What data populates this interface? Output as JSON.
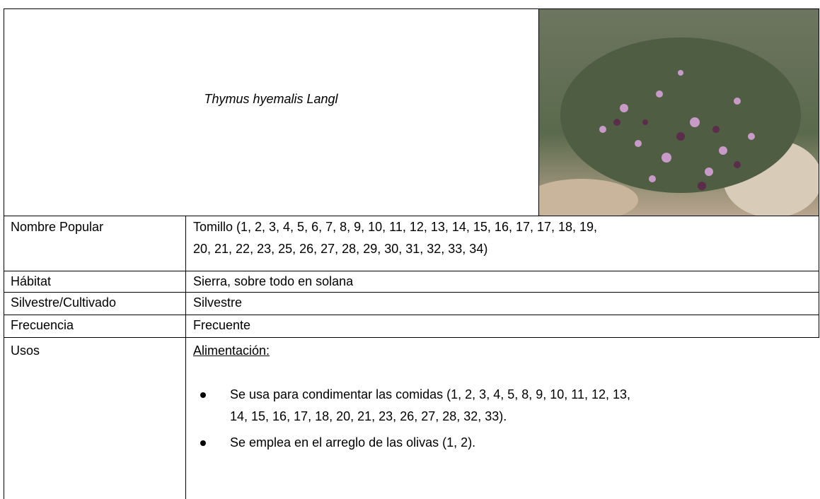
{
  "header": {
    "title": "Thymus hyemalis Langl"
  },
  "rows": [
    {
      "label": "Nombre Popular",
      "value": [
        "Tomillo (1, 2, 3, 4, 5, 6, 7, 8, 9, 10, 11, 12, 13, 14, 15, 16, 17, 17, 18, 19,",
        "20, 21, 22, 23, 25, 26, 27, 28, 29, 30, 31, 32, 33, 34)"
      ]
    },
    {
      "label": "Hábitat",
      "value": [
        "Sierra, sobre todo en solana"
      ]
    },
    {
      "label": "Silvestre/Cultivado",
      "value": [
        "Silvestre"
      ]
    },
    {
      "label": "Frecuencia",
      "value": [
        "Frecuente"
      ]
    }
  ],
  "usos": {
    "label": "Usos",
    "heading": "Alimentación:",
    "bullets": [
      [
        "Se usa para condimentar las comidas (1, 2, 3, 4, 5, 8, 9, 10, 11, 12, 13,",
        "14, 15, 16, 17, 18, 20, 21, 23, 26, 27, 28, 32, 33)."
      ],
      [
        "Se emplea en el arreglo de las olivas (1, 2)."
      ]
    ]
  }
}
